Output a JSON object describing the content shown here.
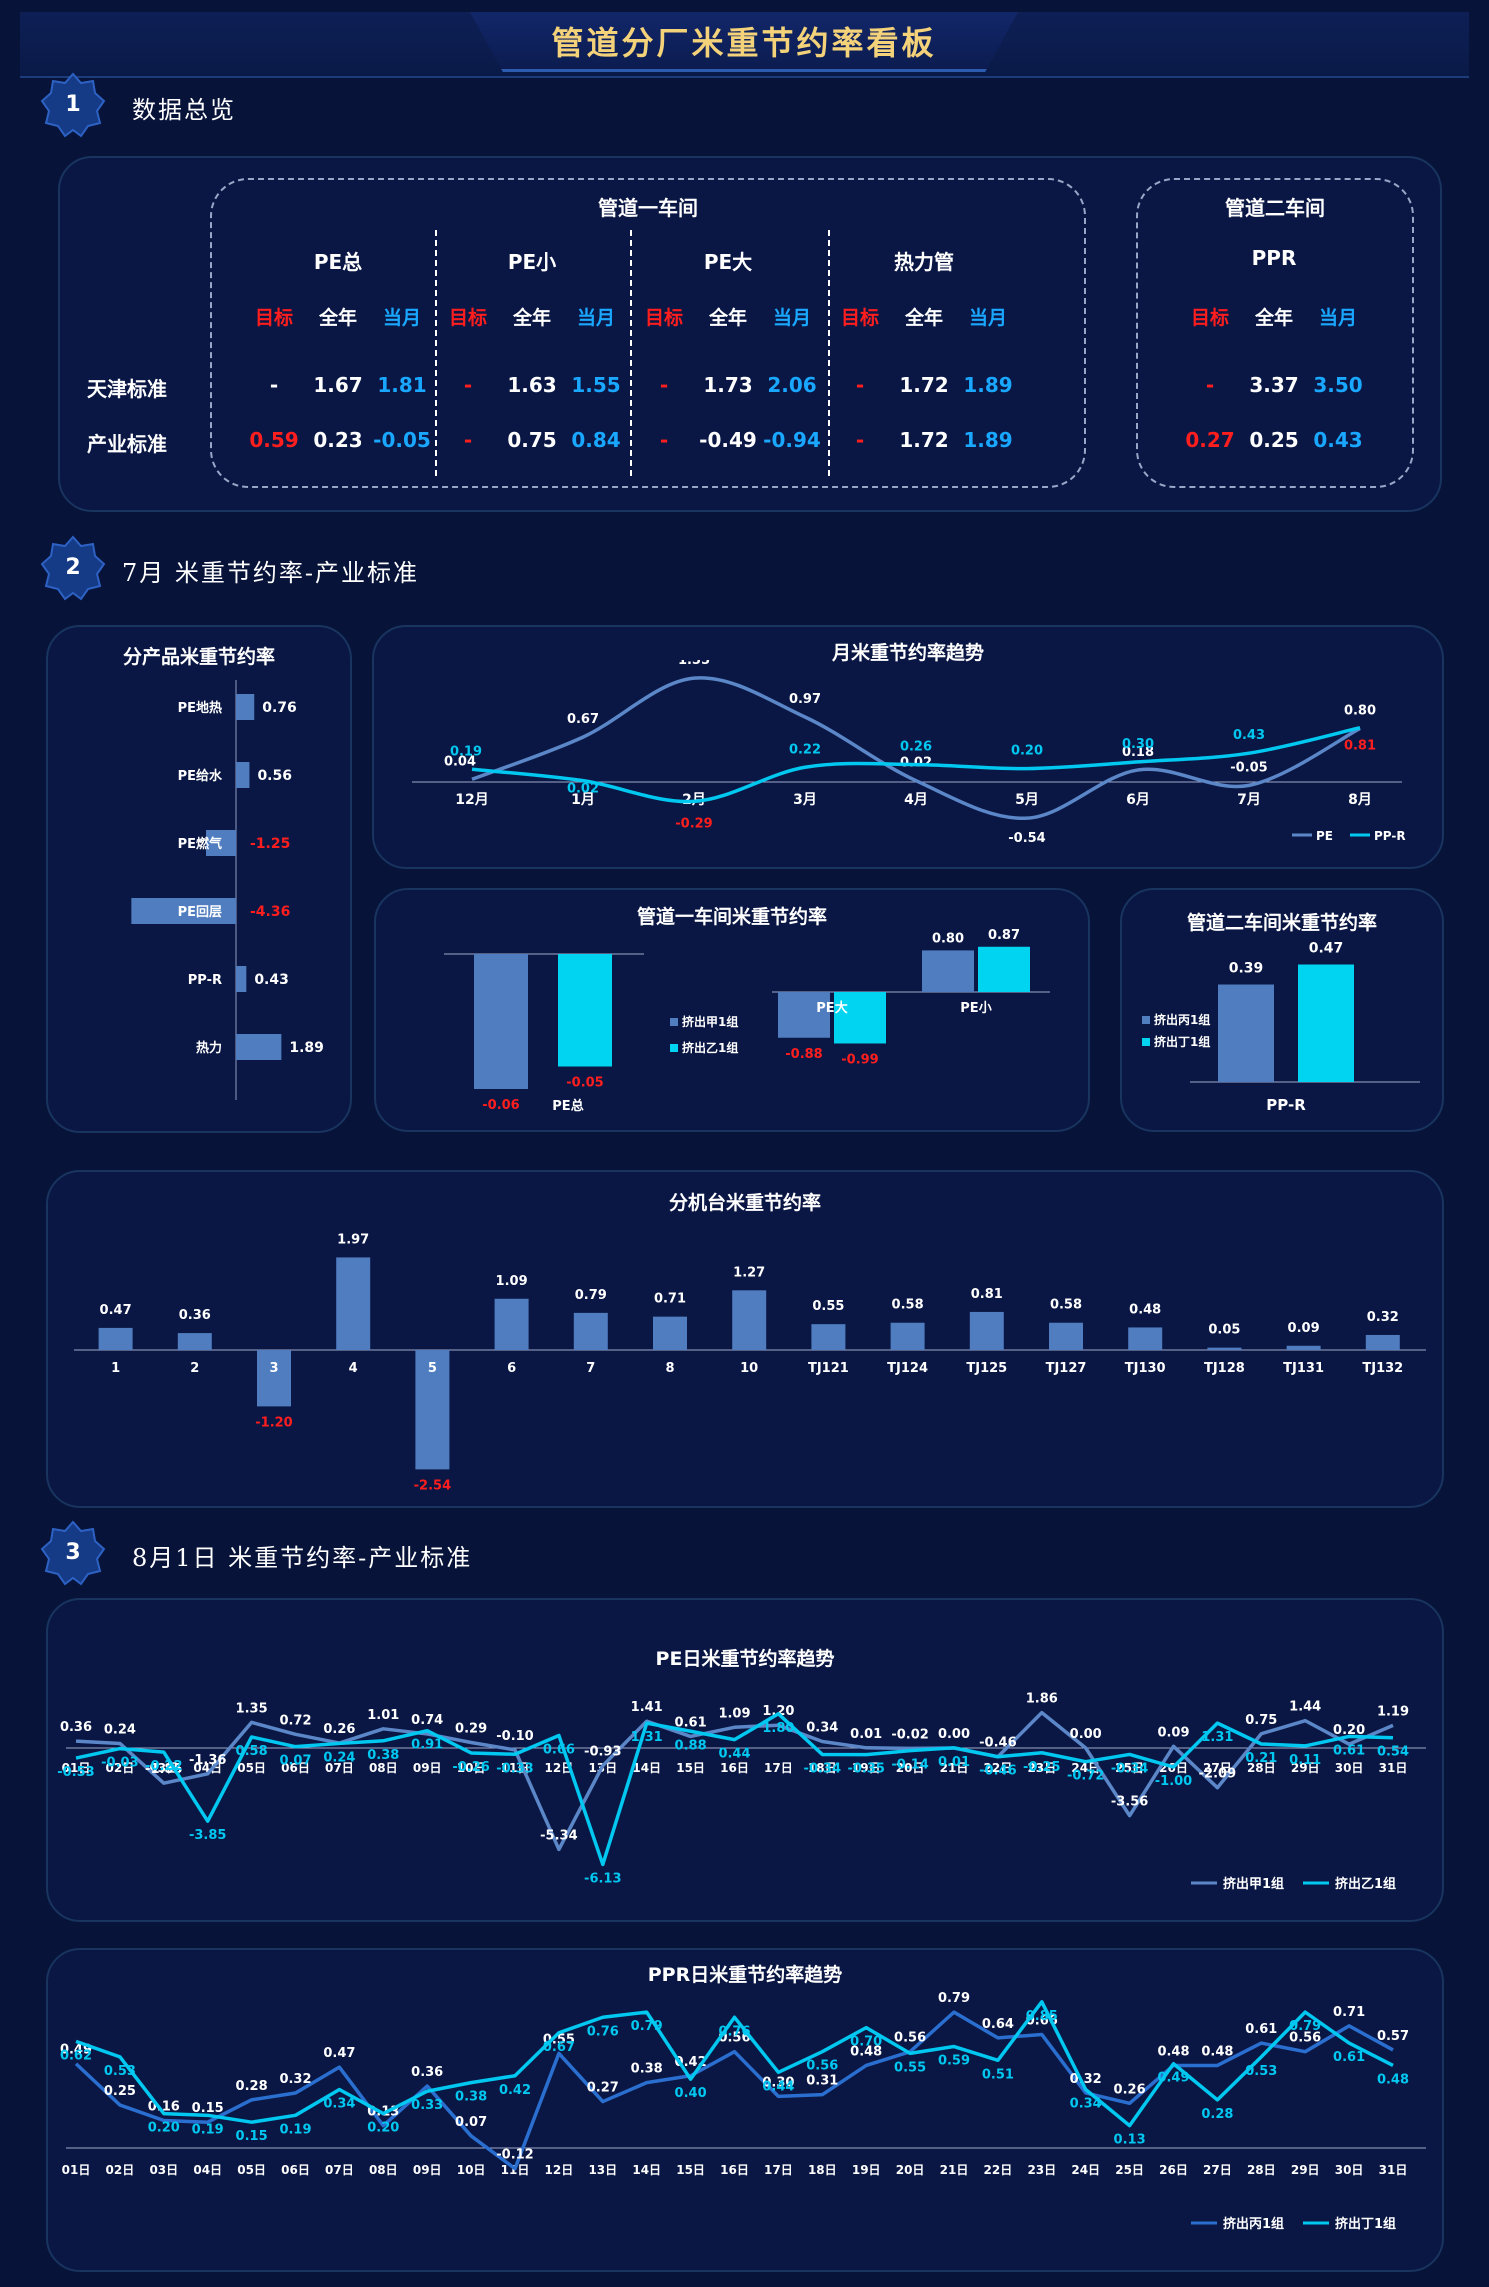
{
  "title": "管道分厂米重节约率看板",
  "sections": [
    {
      "num": "1",
      "title": "数据总览"
    },
    {
      "num": "2",
      "title": "7月 米重节约率-产业标准"
    },
    {
      "num": "3",
      "title": "8月1日 米重节约率-产业标准"
    }
  ],
  "overview": {
    "workshop1": "管道一车间",
    "workshop2": "管道二车间",
    "row_labels": [
      "天津标准",
      "产业标准"
    ],
    "col_labels": [
      "目标",
      "全年",
      "当月"
    ],
    "groups": [
      {
        "name": "PE总",
        "rows": [
          [
            "-",
            "1.67",
            "1.81"
          ],
          [
            "0.59",
            "0.23",
            "-0.05"
          ]
        ]
      },
      {
        "name": "PE小",
        "rows": [
          [
            "-",
            "1.63",
            "1.55"
          ],
          [
            "-",
            "0.75",
            "0.84"
          ]
        ]
      },
      {
        "name": "PE大",
        "rows": [
          [
            "-",
            "1.73",
            "2.06"
          ],
          [
            "-",
            "-0.49",
            "-0.94"
          ]
        ]
      },
      {
        "name": "热力管",
        "rows": [
          [
            "-",
            "1.72",
            "1.89"
          ],
          [
            "-",
            "1.72",
            "1.89"
          ]
        ]
      },
      {
        "name": "PPR",
        "rows": [
          [
            "-",
            "3.37",
            "3.50"
          ],
          [
            "0.27",
            "0.25",
            "0.43"
          ]
        ]
      }
    ]
  },
  "colors": {
    "bar_blue": "#4f7dc0",
    "bar_cyan": "#00d4f0",
    "line_pe": "#5b87c8",
    "line_ppr": "#00c8f0",
    "negative": "#ff1e1e",
    "target": "#ff1e1e",
    "month": "#19a7ff"
  },
  "chart_data": [
    {
      "id": "product",
      "type": "bar",
      "orientation": "horizontal",
      "title": "分产品米重节约率",
      "categories": [
        "PE地热",
        "PE给水",
        "PE燃气",
        "PE回层",
        "PP-R",
        "热力"
      ],
      "values": [
        0.76,
        0.56,
        -1.25,
        -4.36,
        0.43,
        1.89
      ],
      "labels": [
        "0.76",
        "0.56",
        "-1.25",
        "-4.36",
        "0.43",
        "1.89"
      ]
    },
    {
      "id": "trend",
      "type": "line",
      "title": "月米重节约率趋势",
      "categories": [
        "12月",
        "1月",
        "2月",
        "3月",
        "4月",
        "5月",
        "6月",
        "7月",
        "8月"
      ],
      "series": [
        {
          "name": "PE",
          "values": [
            0.04,
            0.67,
            1.55,
            0.97,
            0.02,
            -0.54,
            0.18,
            -0.05,
            0.8
          ]
        },
        {
          "name": "PP-R",
          "values": [
            0.19,
            0.02,
            -0.29,
            0.22,
            0.26,
            0.2,
            0.3,
            0.43,
            0.81
          ]
        }
      ],
      "legend": "bottom-right"
    },
    {
      "id": "ws1",
      "type": "bar",
      "title": "管道一车间米重节约率",
      "groups": [
        {
          "name": "PE总",
          "values": [
            -0.06,
            -0.05
          ]
        },
        {
          "name": "PE大",
          "values": [
            -0.88,
            -0.99
          ]
        },
        {
          "name": "PE小",
          "values": [
            0.8,
            0.87
          ]
        }
      ],
      "series": [
        {
          "name": "挤出甲1组"
        },
        {
          "name": "挤出乙1组"
        }
      ],
      "legend": "center"
    },
    {
      "id": "ws2",
      "type": "bar",
      "title": "管道二车间米重节约率",
      "categories": [
        "PP-R"
      ],
      "series": [
        {
          "name": "挤出丙1组",
          "values": [
            0.39
          ]
        },
        {
          "name": "挤出丁1组",
          "values": [
            0.47
          ]
        }
      ],
      "legend": "left"
    },
    {
      "id": "machine",
      "type": "bar",
      "title": "分机台米重节约率",
      "categories": [
        "1",
        "2",
        "3",
        "4",
        "5",
        "6",
        "7",
        "8",
        "10",
        "TJ121",
        "TJ124",
        "TJ125",
        "TJ127",
        "TJ130",
        "TJ128",
        "TJ131",
        "TJ132"
      ],
      "values": [
        0.47,
        0.36,
        -1.2,
        1.97,
        -2.54,
        1.09,
        0.79,
        0.71,
        1.27,
        0.55,
        0.58,
        0.81,
        0.58,
        0.48,
        0.05,
        0.09,
        0.32
      ]
    },
    {
      "id": "pe_daily",
      "type": "line",
      "title": "PE日米重节约率趋势",
      "categories": [
        "01日",
        "02日",
        "03日",
        "04日",
        "05日",
        "06日",
        "07日",
        "08日",
        "09日",
        "10日",
        "11日",
        "12日",
        "13日",
        "14日",
        "15日",
        "16日",
        "17日",
        "18日",
        "19日",
        "20日",
        "21日",
        "22日",
        "23日",
        "24日",
        "25日",
        "26日",
        "27日",
        "28日",
        "29日",
        "30日",
        "31日"
      ],
      "series": [
        {
          "name": "挤出甲1组",
          "values": [
            0.36,
            0.24,
            -1.85,
            -1.36,
            1.35,
            0.72,
            0.26,
            1.01,
            0.74,
            0.29,
            -0.1,
            -5.34,
            -0.93,
            1.41,
            0.61,
            1.09,
            1.2,
            0.34,
            0.01,
            -0.02,
            0.0,
            -0.46,
            1.86,
            0.0,
            -3.56,
            0.09,
            -2.09,
            0.75,
            1.44,
            0.2,
            1.19
          ]
        },
        {
          "name": "挤出乙1组",
          "values": [
            -0.53,
            -0.03,
            -0.22,
            -3.85,
            0.58,
            0.07,
            0.24,
            0.38,
            0.91,
            -0.26,
            -0.33,
            0.66,
            -6.13,
            1.31,
            0.88,
            0.44,
            1.8,
            -0.34,
            -0.35,
            -0.14,
            0.01,
            -0.46,
            -0.25,
            -0.72,
            -0.34,
            -1.0,
            1.31,
            0.21,
            0.11,
            0.61,
            0.54
          ]
        }
      ],
      "legend": "bottom-right"
    },
    {
      "id": "ppr_daily",
      "type": "line",
      "title": "PPR日米重节约率趋势",
      "categories": [
        "01日",
        "02日",
        "03日",
        "04日",
        "05日",
        "06日",
        "07日",
        "08日",
        "09日",
        "10日",
        "11日",
        "12日",
        "13日",
        "14日",
        "15日",
        "16日",
        "17日",
        "18日",
        "19日",
        "20日",
        "21日",
        "22日",
        "23日",
        "24日",
        "25日",
        "26日",
        "27日",
        "28日",
        "29日",
        "30日",
        "31日"
      ],
      "series": [
        {
          "name": "挤出丙1组",
          "values": [
            0.49,
            0.25,
            0.16,
            0.15,
            0.28,
            0.32,
            0.47,
            0.13,
            0.36,
            0.07,
            -0.12,
            0.55,
            0.27,
            0.38,
            0.42,
            0.56,
            0.3,
            0.31,
            0.48,
            0.56,
            0.79,
            0.64,
            0.66,
            0.32,
            0.26,
            0.48,
            0.48,
            0.61,
            0.56,
            0.71,
            0.57
          ]
        },
        {
          "name": "挤出丁1组",
          "values": [
            0.62,
            0.53,
            0.2,
            0.19,
            0.15,
            0.19,
            0.34,
            0.2,
            0.33,
            0.38,
            0.42,
            0.67,
            0.76,
            0.79,
            0.4,
            0.76,
            0.44,
            0.56,
            0.7,
            0.55,
            0.59,
            0.51,
            0.85,
            0.34,
            0.13,
            0.49,
            0.28,
            0.53,
            0.79,
            0.61,
            0.48
          ]
        }
      ],
      "legend": "bottom-right"
    }
  ]
}
